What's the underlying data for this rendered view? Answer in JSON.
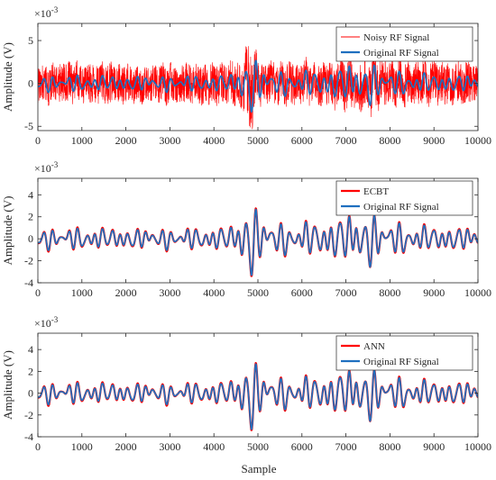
{
  "figure": {
    "xlabel": "Sample",
    "colors": {
      "noisy": "#ff0000",
      "original": "#1f6fbf",
      "estimate": "#ff0000",
      "axis": "#262626"
    }
  },
  "chart_data": [
    {
      "type": "line",
      "title": "",
      "xlabel": "",
      "ylabel": "Amplitude (V)",
      "y_exponent": "×10",
      "y_exponent_power": "-3",
      "xlim": [
        0,
        10000
      ],
      "ylim": [
        -5.5,
        7
      ],
      "xticks": [
        "0",
        "1000",
        "2000",
        "3000",
        "4000",
        "5000",
        "6000",
        "7000",
        "8000",
        "9000",
        "10000"
      ],
      "yticks": [
        {
          "value": -5,
          "label": "-5"
        },
        {
          "value": 0,
          "label": "0"
        },
        {
          "value": 5,
          "label": "5"
        }
      ],
      "grid": false,
      "legend_position": "top-right",
      "legend": [
        "Noisy RF Signal",
        "Original RF Signal"
      ],
      "series": [
        {
          "name": "Noisy RF Signal",
          "color": "#ff0000",
          "kind": "noisy",
          "x": [
            0,
            500,
            1000,
            1500,
            2000,
            2500,
            3000,
            3500,
            4000,
            4500,
            4700,
            4750,
            4800,
            4850,
            4900,
            4950,
            5000,
            5500,
            6000,
            6500,
            7000,
            7500,
            8000,
            8500,
            9000,
            9500,
            10000
          ],
          "envelope": [
            2.8,
            2.9,
            3.0,
            3.1,
            2.8,
            2.7,
            2.8,
            2.9,
            3.0,
            3.1,
            4.0,
            5.5,
            6.3,
            5.8,
            4.5,
            3.6,
            3.2,
            3.0,
            3.0,
            3.1,
            3.6,
            3.8,
            3.3,
            3.1,
            3.0,
            3.0,
            2.9
          ]
        },
        {
          "name": "Original RF Signal",
          "color": "#1f6fbf",
          "kind": "signal",
          "x": [
            0,
            1000,
            2000,
            3000,
            4000,
            4500,
            4800,
            4850,
            4900,
            5000,
            5500,
            6000,
            6500,
            7000,
            7500,
            8000,
            9000,
            10000
          ],
          "envelope": [
            0.9,
            1.0,
            0.9,
            0.9,
            1.0,
            1.2,
            4.0,
            4.0,
            3.5,
            2.2,
            1.4,
            1.5,
            1.6,
            2.2,
            2.6,
            1.5,
            1.1,
            1.0
          ]
        }
      ]
    },
    {
      "type": "line",
      "title": "",
      "xlabel": "",
      "ylabel": "Amplitude (V)",
      "y_exponent": "×10",
      "y_exponent_power": "-3",
      "xlim": [
        0,
        10000
      ],
      "ylim": [
        -4,
        5.5
      ],
      "xticks": [
        "0",
        "1000",
        "2000",
        "3000",
        "4000",
        "5000",
        "6000",
        "7000",
        "8000",
        "9000",
        "10000"
      ],
      "yticks": [
        {
          "value": -4,
          "label": "-4"
        },
        {
          "value": -2,
          "label": "-2"
        },
        {
          "value": 0,
          "label": "0"
        },
        {
          "value": 2,
          "label": "2"
        },
        {
          "value": 4,
          "label": "4"
        }
      ],
      "grid": false,
      "legend_position": "top-right",
      "legend": [
        "ECBT",
        "Original RF Signal"
      ],
      "series": [
        {
          "name": "ECBT",
          "color": "#ff0000",
          "kind": "estimate",
          "x": [
            0,
            1000,
            2000,
            3000,
            4000,
            4500,
            4800,
            4850,
            4900,
            5000,
            5500,
            6000,
            6500,
            7000,
            7500,
            8000,
            9000,
            10000
          ],
          "envelope": [
            1.0,
            1.1,
            1.0,
            1.0,
            1.1,
            1.3,
            4.1,
            4.1,
            3.6,
            2.3,
            1.5,
            1.6,
            1.7,
            2.3,
            2.6,
            1.6,
            1.2,
            1.1
          ]
        },
        {
          "name": "Original RF Signal",
          "color": "#1f6fbf",
          "kind": "signal",
          "x": [
            0,
            1000,
            2000,
            3000,
            4000,
            4500,
            4800,
            4850,
            4900,
            5000,
            5500,
            6000,
            6500,
            7000,
            7500,
            8000,
            9000,
            10000
          ],
          "envelope": [
            0.9,
            1.0,
            0.9,
            0.9,
            1.0,
            1.2,
            4.0,
            4.0,
            3.5,
            2.2,
            1.4,
            1.5,
            1.6,
            2.2,
            2.6,
            1.5,
            1.1,
            1.0
          ]
        }
      ]
    },
    {
      "type": "line",
      "title": "",
      "xlabel": "Sample",
      "ylabel": "Amplitude (V)",
      "y_exponent": "×10",
      "y_exponent_power": "-3",
      "xlim": [
        0,
        10000
      ],
      "ylim": [
        -4,
        5.5
      ],
      "xticks": [
        "0",
        "1000",
        "2000",
        "3000",
        "4000",
        "5000",
        "6000",
        "7000",
        "8000",
        "9000",
        "10000"
      ],
      "yticks": [
        {
          "value": -4,
          "label": "-4"
        },
        {
          "value": -2,
          "label": "-2"
        },
        {
          "value": 0,
          "label": "0"
        },
        {
          "value": 2,
          "label": "2"
        },
        {
          "value": 4,
          "label": "4"
        }
      ],
      "grid": false,
      "legend_position": "top-right",
      "legend": [
        "ANN",
        "Original RF Signal"
      ],
      "series": [
        {
          "name": "ANN",
          "color": "#ff0000",
          "kind": "estimate",
          "x": [
            0,
            1000,
            2000,
            3000,
            4000,
            4500,
            4800,
            4850,
            4900,
            5000,
            5500,
            6000,
            6500,
            7000,
            7500,
            8000,
            9000,
            10000
          ],
          "envelope": [
            1.0,
            1.1,
            1.0,
            1.0,
            1.1,
            1.3,
            4.1,
            4.1,
            3.6,
            2.3,
            1.5,
            1.6,
            1.7,
            2.3,
            2.6,
            1.6,
            1.2,
            1.1
          ]
        },
        {
          "name": "Original RF Signal",
          "color": "#1f6fbf",
          "kind": "signal",
          "x": [
            0,
            1000,
            2000,
            3000,
            4000,
            4500,
            4800,
            4850,
            4900,
            5000,
            5500,
            6000,
            6500,
            7000,
            7500,
            8000,
            9000,
            10000
          ],
          "envelope": [
            0.9,
            1.0,
            0.9,
            0.9,
            1.0,
            1.2,
            4.0,
            4.0,
            3.5,
            2.2,
            1.4,
            1.5,
            1.6,
            2.2,
            2.6,
            1.5,
            1.1,
            1.0
          ]
        }
      ]
    }
  ]
}
